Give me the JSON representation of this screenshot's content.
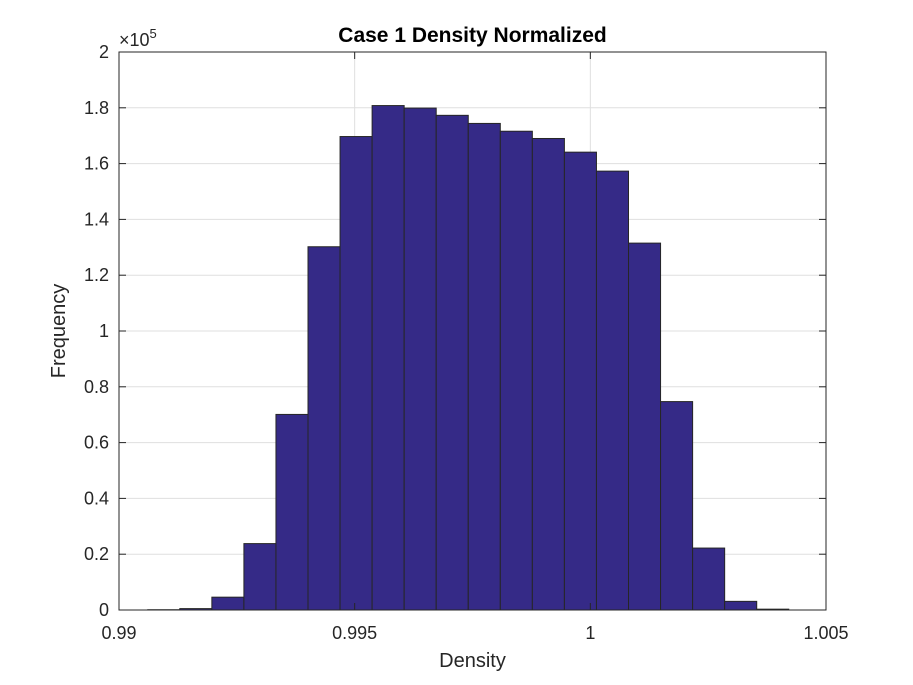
{
  "chart_data": {
    "type": "bar",
    "title": "Case 1 Density Normalized",
    "xlabel": "Density",
    "ylabel": "Frequency",
    "y_exponent_prefix": "×10",
    "y_exponent_power": "5",
    "xlim": [
      0.99,
      1.005
    ],
    "ylim": [
      0,
      2
    ],
    "x_ticks": [
      0.99,
      0.995,
      1.0,
      1.005
    ],
    "x_tick_labels": [
      "0.99",
      "0.995",
      "1",
      "1.005"
    ],
    "y_ticks": [
      0,
      0.2,
      0.4,
      0.6,
      0.8,
      1.0,
      1.2,
      1.4,
      1.6,
      1.8,
      2.0
    ],
    "y_tick_labels": [
      "0",
      "0.2",
      "0.4",
      "0.6",
      "0.8",
      "1",
      "1.2",
      "1.4",
      "1.6",
      "1.8",
      "2"
    ],
    "grid": true,
    "bar_color": "#352a87",
    "bin_edges": [
      0.99061,
      0.99129,
      0.99197,
      0.99265,
      0.99333,
      0.99401,
      0.99469,
      0.99537,
      0.99605,
      0.99673,
      0.99741,
      0.99809,
      0.99877,
      0.99945,
      1.00013,
      1.00081,
      1.00149,
      1.00217,
      1.00285,
      1.00353,
      1.00421
    ],
    "values": [
      0.001,
      0.005,
      0.046,
      0.238,
      0.701,
      1.302,
      1.697,
      1.808,
      1.799,
      1.773,
      1.744,
      1.716,
      1.69,
      1.641,
      1.573,
      1.315,
      0.747,
      0.222,
      0.031,
      0.003
    ]
  }
}
